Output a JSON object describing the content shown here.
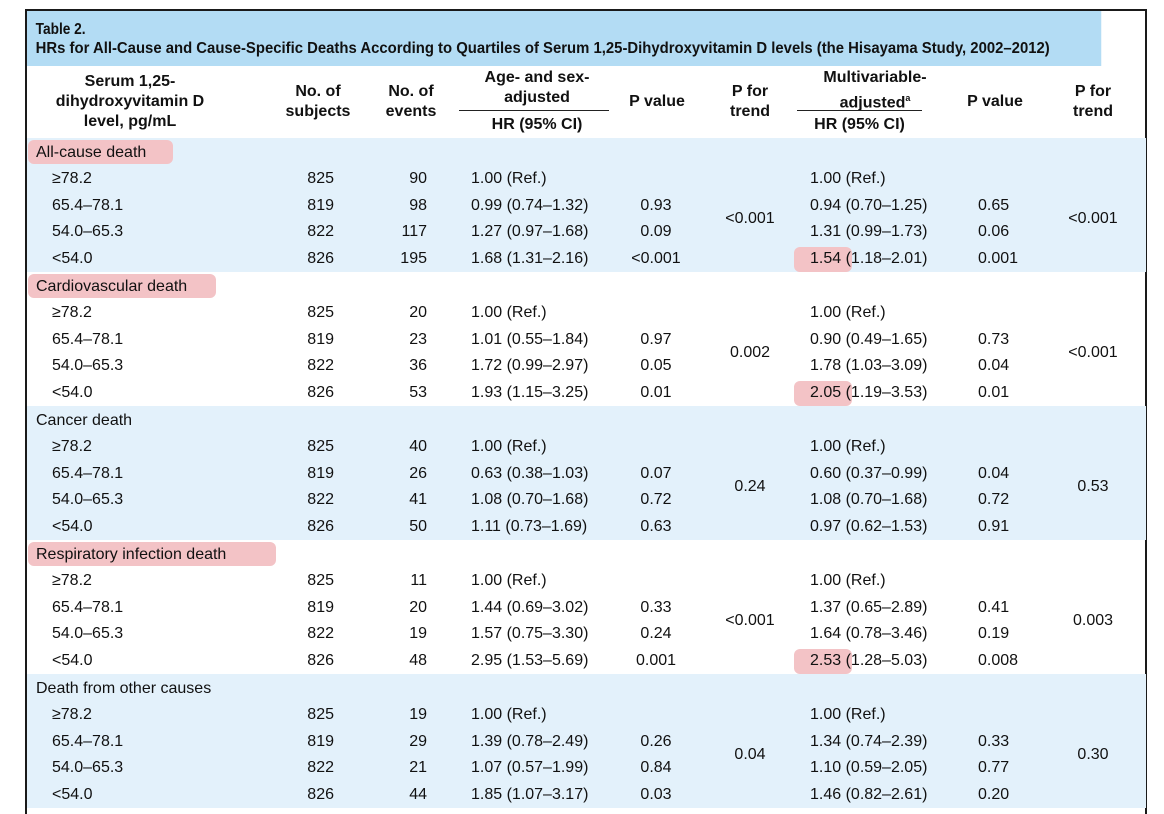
{
  "table": {
    "label": "Table 2.",
    "title": "HRs for All-Cause and Cause-Specific Deaths According to Quartiles of Serum 1,25-Dihydroxyvitamin D levels (the Hisayama Study, 2002–2012)",
    "headers": {
      "level": "Serum 1,25-dihydroxyvitamin D level, pg/mL",
      "subjects": "No. of subjects",
      "events": "No. of events",
      "age_sex": "Age- and sex- adjusted",
      "hr": "HR (95% CI)",
      "p_value": "P value",
      "p_trend": "P for trend",
      "multivariable": "Multivariable- adjusted",
      "multivariable_sup": "a",
      "hr2": "HR (95% CI)",
      "p_value2": "P value",
      "p_trend2": "P for trend"
    },
    "highlight_color": "#f3c3c6",
    "band_color": "#e3f1fb",
    "title_color": "#b3dcf4",
    "sections": [
      {
        "label": "All-cause death",
        "label_highlighted": true,
        "trend1": "<0.001",
        "trend2": "<0.001",
        "highlighted_hr_row": 3,
        "rows": [
          {
            "level": "≥78.2",
            "subjects": "825",
            "events": "90",
            "hr1": "1.00 (Ref.)",
            "p1": "",
            "hr2": "1.00 (Ref.)",
            "p2": ""
          },
          {
            "level": "65.4–78.1",
            "subjects": "819",
            "events": "98",
            "hr1": "0.99 (0.74–1.32)",
            "p1": "0.93",
            "hr2": "0.94 (0.70–1.25)",
            "p2": "0.65"
          },
          {
            "level": "54.0–65.3",
            "subjects": "822",
            "events": "117",
            "hr1": "1.27 (0.97–1.68)",
            "p1": "0.09",
            "hr2": "1.31 (0.99–1.73)",
            "p2": "0.06"
          },
          {
            "level": "<54.0",
            "subjects": "826",
            "events": "195",
            "hr1": "1.68 (1.31–2.16)",
            "p1": "<0.001",
            "hr2": "1.54 (1.18–2.01)",
            "p2": "0.001"
          }
        ]
      },
      {
        "label": "Cardiovascular death",
        "label_highlighted": true,
        "trend1": "0.002",
        "trend2": "<0.001",
        "highlighted_hr_row": 3,
        "rows": [
          {
            "level": "≥78.2",
            "subjects": "825",
            "events": "20",
            "hr1": "1.00 (Ref.)",
            "p1": "",
            "hr2": "1.00 (Ref.)",
            "p2": ""
          },
          {
            "level": "65.4–78.1",
            "subjects": "819",
            "events": "23",
            "hr1": "1.01 (0.55–1.84)",
            "p1": "0.97",
            "hr2": "0.90 (0.49–1.65)",
            "p2": "0.73"
          },
          {
            "level": "54.0–65.3",
            "subjects": "822",
            "events": "36",
            "hr1": "1.72 (0.99–2.97)",
            "p1": "0.05",
            "hr2": "1.78 (1.03–3.09)",
            "p2": "0.04"
          },
          {
            "level": "<54.0",
            "subjects": "826",
            "events": "53",
            "hr1": "1.93 (1.15–3.25)",
            "p1": "0.01",
            "hr2": "2.05 (1.19–3.53)",
            "p2": "0.01"
          }
        ]
      },
      {
        "label": "Cancer death",
        "label_highlighted": false,
        "trend1": "0.24",
        "trend2": "0.53",
        "highlighted_hr_row": null,
        "rows": [
          {
            "level": "≥78.2",
            "subjects": "825",
            "events": "40",
            "hr1": "1.00 (Ref.)",
            "p1": "",
            "hr2": "1.00 (Ref.)",
            "p2": ""
          },
          {
            "level": "65.4–78.1",
            "subjects": "819",
            "events": "26",
            "hr1": "0.63 (0.38–1.03)",
            "p1": "0.07",
            "hr2": "0.60 (0.37–0.99)",
            "p2": "0.04"
          },
          {
            "level": "54.0–65.3",
            "subjects": "822",
            "events": "41",
            "hr1": "1.08 (0.70–1.68)",
            "p1": "0.72",
            "hr2": "1.08 (0.70–1.68)",
            "p2": "0.72"
          },
          {
            "level": "<54.0",
            "subjects": "826",
            "events": "50",
            "hr1": "1.11 (0.73–1.69)",
            "p1": "0.63",
            "hr2": "0.97 (0.62–1.53)",
            "p2": "0.91"
          }
        ]
      },
      {
        "label": "Respiratory infection death",
        "label_highlighted": true,
        "trend1": "<0.001",
        "trend2": "0.003",
        "highlighted_hr_row": 3,
        "rows": [
          {
            "level": "≥78.2",
            "subjects": "825",
            "events": "11",
            "hr1": "1.00 (Ref.)",
            "p1": "",
            "hr2": "1.00 (Ref.)",
            "p2": ""
          },
          {
            "level": "65.4–78.1",
            "subjects": "819",
            "events": "20",
            "hr1": "1.44 (0.69–3.02)",
            "p1": "0.33",
            "hr2": "1.37 (0.65–2.89)",
            "p2": "0.41"
          },
          {
            "level": "54.0–65.3",
            "subjects": "822",
            "events": "19",
            "hr1": "1.57 (0.75–3.30)",
            "p1": "0.24",
            "hr2": "1.64 (0.78–3.46)",
            "p2": "0.19"
          },
          {
            "level": "<54.0",
            "subjects": "826",
            "events": "48",
            "hr1": "2.95 (1.53–5.69)",
            "p1": "0.001",
            "hr2": "2.53 (1.28–5.03)",
            "p2": "0.008"
          }
        ]
      },
      {
        "label": "Death from other causes",
        "label_highlighted": false,
        "trend1": "0.04",
        "trend2": "0.30",
        "highlighted_hr_row": null,
        "rows": [
          {
            "level": "≥78.2",
            "subjects": "825",
            "events": "19",
            "hr1": "1.00 (Ref.)",
            "p1": "",
            "hr2": "1.00 (Ref.)",
            "p2": ""
          },
          {
            "level": "65.4–78.1",
            "subjects": "819",
            "events": "29",
            "hr1": "1.39 (0.78–2.49)",
            "p1": "0.26",
            "hr2": "1.34 (0.74–2.39)",
            "p2": "0.33"
          },
          {
            "level": "54.0–65.3",
            "subjects": "822",
            "events": "21",
            "hr1": "1.07 (0.57–1.99)",
            "p1": "0.84",
            "hr2": "1.10 (0.59–2.05)",
            "p2": "0.77"
          },
          {
            "level": "<54.0",
            "subjects": "826",
            "events": "44",
            "hr1": "1.85 (1.07–3.17)",
            "p1": "0.03",
            "hr2": "1.46 (0.82–2.61)",
            "p2": "0.20"
          }
        ]
      }
    ]
  }
}
